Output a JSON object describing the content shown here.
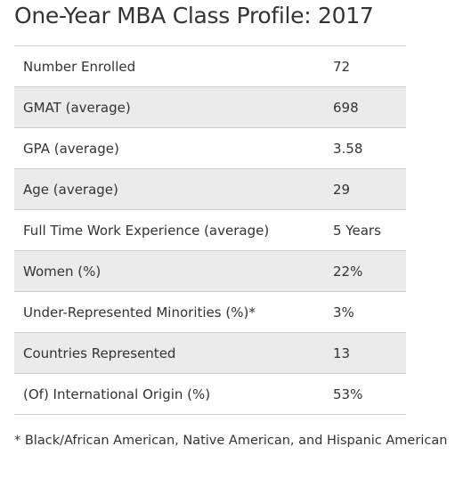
{
  "header": {
    "title": "One-Year MBA Class Profile: 2017"
  },
  "table": {
    "rows": [
      [
        "Number Enrolled",
        72
      ],
      [
        "GMAT (average)",
        698
      ],
      [
        "GPA (average)",
        3.58
      ],
      [
        "Age (average)",
        29
      ],
      [
        "Full Time Work Experience (average)",
        "5 Years"
      ],
      [
        "Women (%)",
        "22%"
      ],
      [
        "Under-Represented Minorities (%)*",
        "3%"
      ],
      [
        "Countries Represented",
        13
      ],
      [
        "(Of) International Origin (%)",
        "53%"
      ]
    ]
  },
  "footnote": "* Black/African American, Native American, and Hispanic American"
}
